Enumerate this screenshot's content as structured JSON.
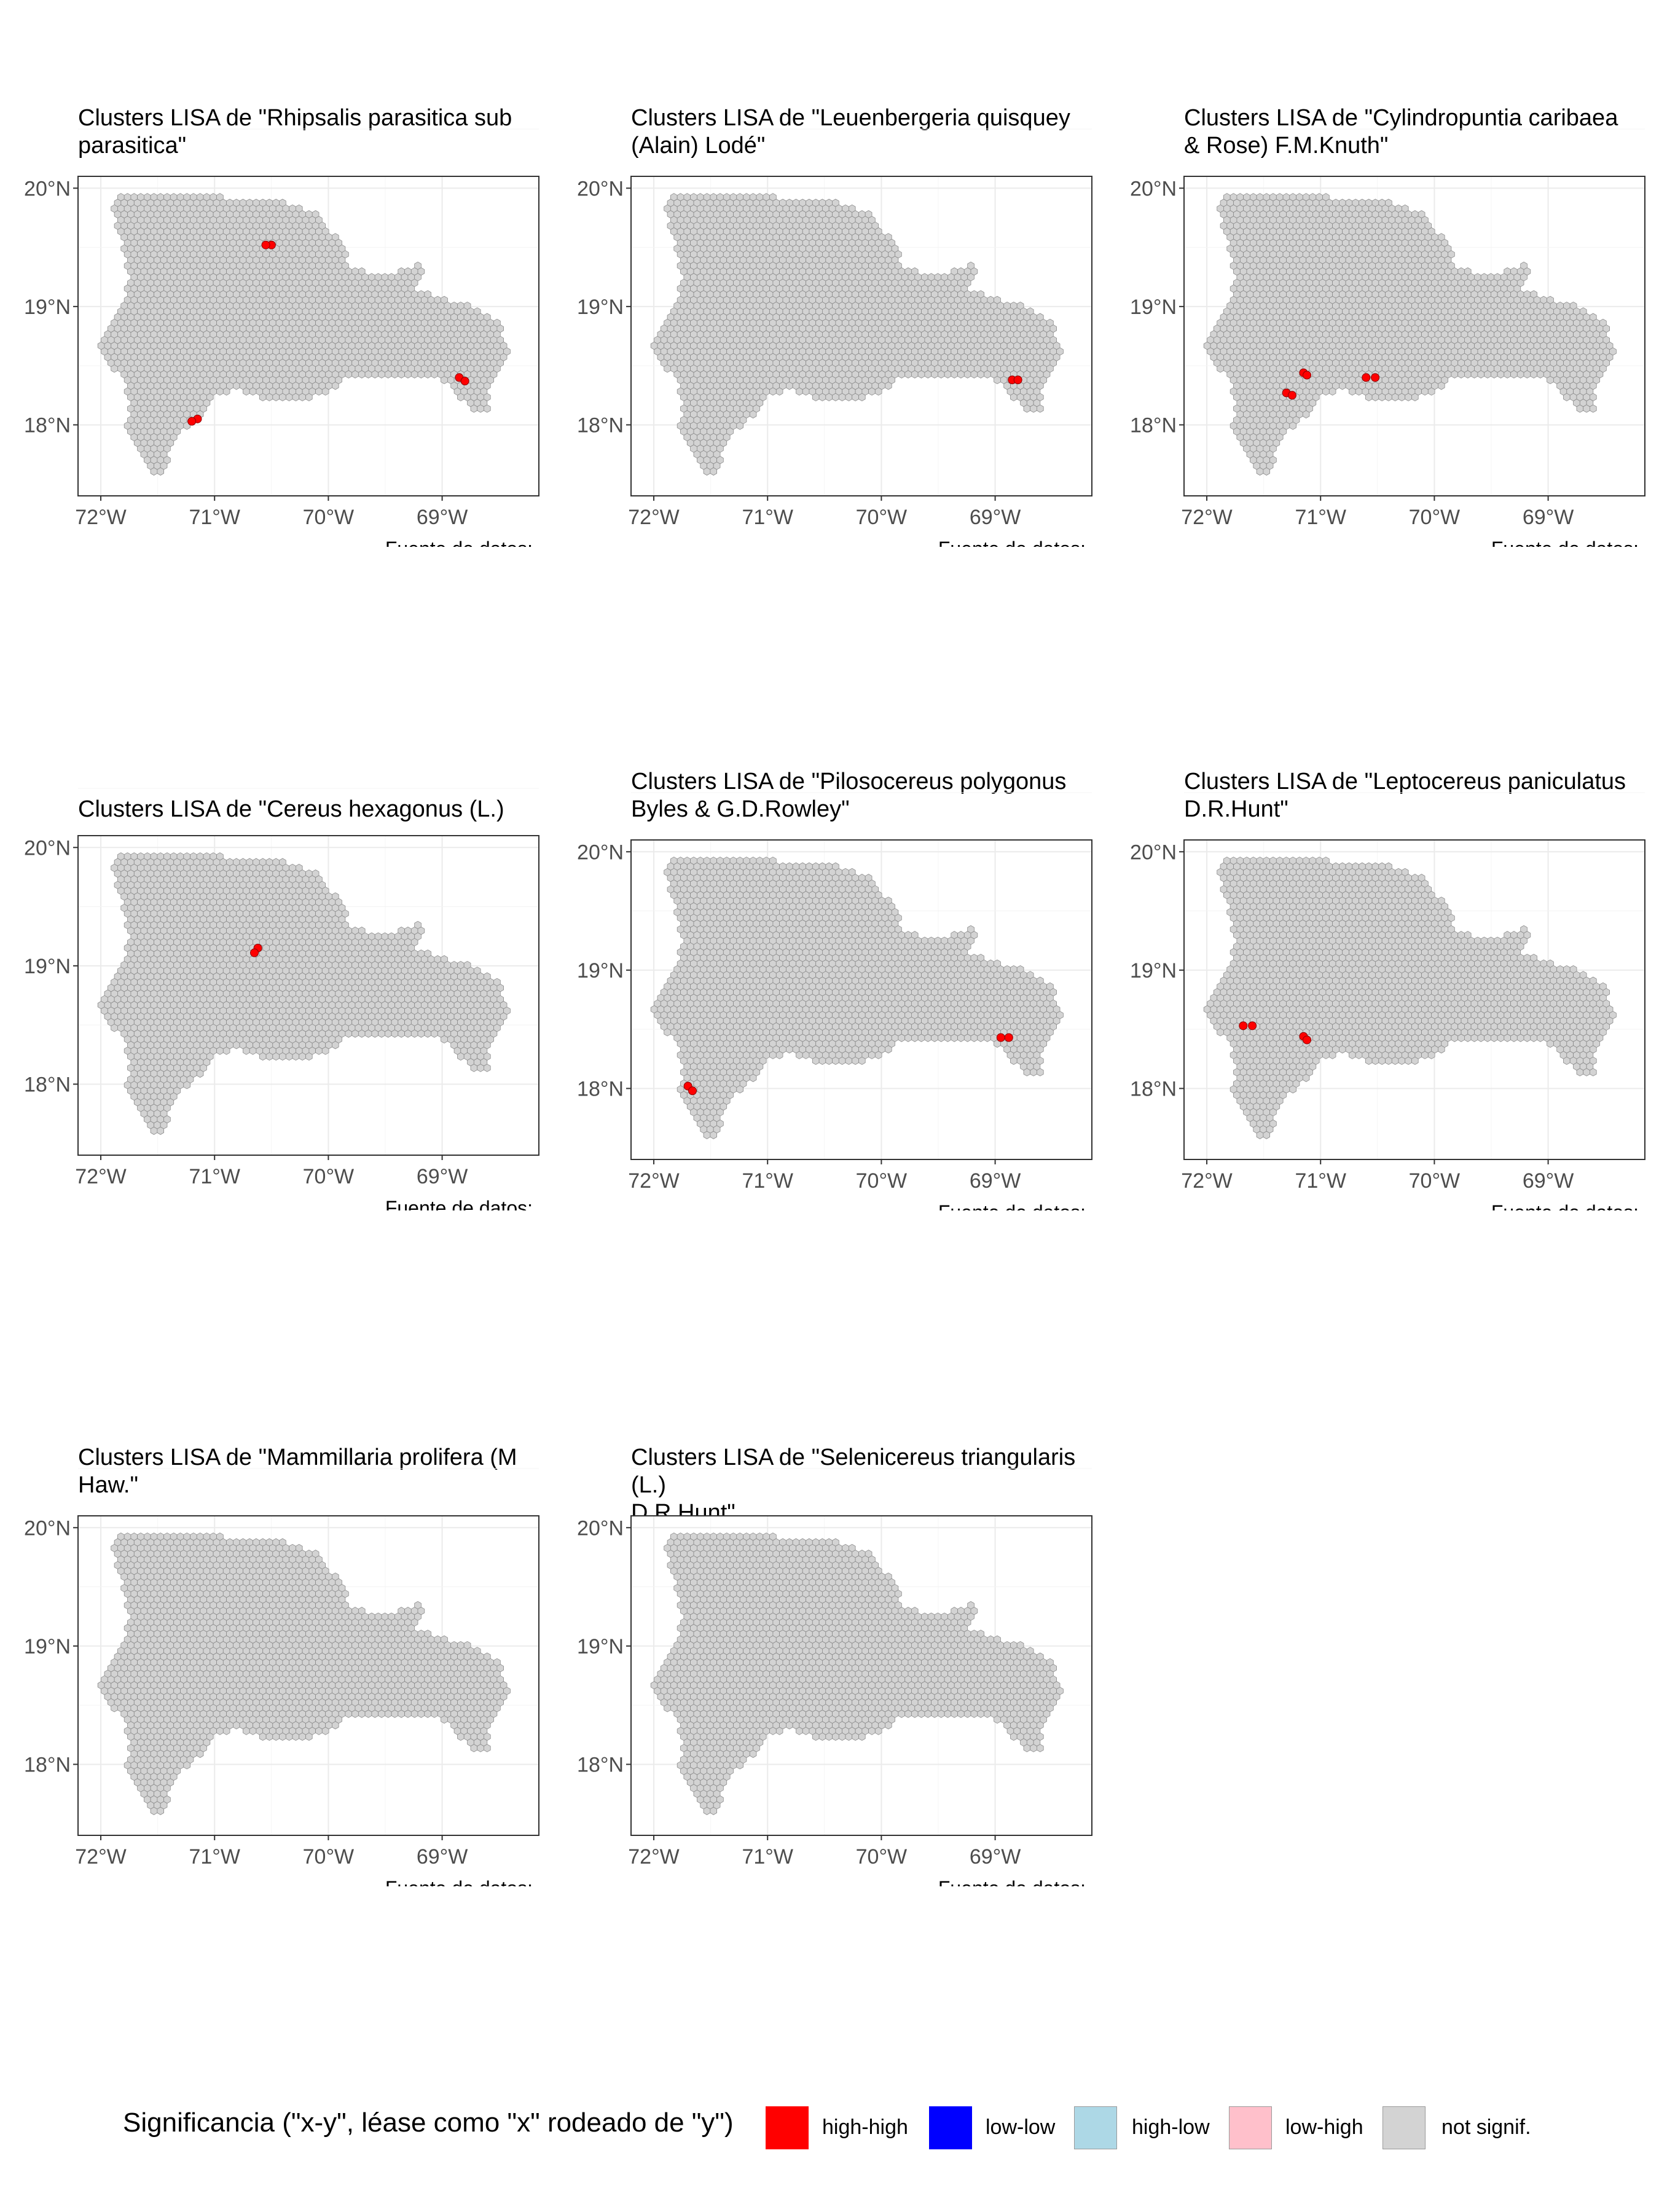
{
  "panels": [
    {
      "title": "Clusters LISA de \"Rhipsalis parasitica subsp. parasitica\"",
      "title_lines": [
        "Clusters LISA de \"Rhipsalis parasitica sub",
        "parasitica\""
      ],
      "caption": "Fuente de datos:",
      "clusters": [
        {
          "lon": -70.5,
          "lat": 19.52,
          "class": "high-high"
        },
        {
          "lon": -70.55,
          "lat": 19.52,
          "class": "high-high"
        },
        {
          "lon": -71.15,
          "lat": 18.05,
          "class": "high-high"
        },
        {
          "lon": -71.2,
          "lat": 18.03,
          "class": "high-high"
        },
        {
          "lon": -68.85,
          "lat": 18.4,
          "class": "high-high"
        },
        {
          "lon": -68.8,
          "lat": 18.37,
          "class": "high-high"
        }
      ]
    },
    {
      "title": "Clusters LISA de \"Leuenbergeria quisqueyana (Alain) Lodé\"",
      "title_lines": [
        "Clusters LISA de \"Leuenbergeria quisquey",
        "(Alain) Lodé\""
      ],
      "caption": "Fuente de datos:",
      "clusters": [
        {
          "lon": -68.85,
          "lat": 18.38,
          "class": "high-high"
        },
        {
          "lon": -68.8,
          "lat": 18.38,
          "class": "high-high"
        }
      ]
    },
    {
      "title": "Clusters LISA de \"Cylindropuntia caribaea (Britton & Rose) F.M.Knuth\"",
      "title_lines": [
        "Clusters LISA de \"Cylindropuntia caribaea",
        "& Rose) F.M.Knuth\""
      ],
      "caption": "Fuente de datos:",
      "clusters": [
        {
          "lon": -71.15,
          "lat": 18.44,
          "class": "high-high"
        },
        {
          "lon": -71.12,
          "lat": 18.42,
          "class": "high-high"
        },
        {
          "lon": -71.3,
          "lat": 18.27,
          "class": "high-high"
        },
        {
          "lon": -71.25,
          "lat": 18.25,
          "class": "high-high"
        },
        {
          "lon": -70.6,
          "lat": 18.4,
          "class": "high-high"
        },
        {
          "lon": -70.52,
          "lat": 18.4,
          "class": "high-high"
        }
      ]
    },
    {
      "title": "Clusters LISA de \"Cereus hexagonus (L.) Mill.\"",
      "title_lines": [
        "Clusters LISA de \"Cereus hexagonus (L.)"
      ],
      "caption": "Fuente de datos:",
      "clusters": [
        {
          "lon": -70.62,
          "lat": 19.15,
          "class": "high-high"
        },
        {
          "lon": -70.65,
          "lat": 19.11,
          "class": "high-high"
        }
      ]
    },
    {
      "title": "Clusters LISA de \"Pilosocereus polygonus (Lam.) Byles & G.D.Rowley\"",
      "title_lines": [
        "Clusters LISA de \"Pilosocereus polygonus",
        "Byles & G.D.Rowley\""
      ],
      "caption": "Fuente de datos:",
      "clusters": [
        {
          "lon": -71.7,
          "lat": 18.02,
          "class": "high-high"
        },
        {
          "lon": -71.66,
          "lat": 17.98,
          "class": "high-high"
        },
        {
          "lon": -68.95,
          "lat": 18.43,
          "class": "high-high"
        },
        {
          "lon": -68.88,
          "lat": 18.43,
          "class": "high-high"
        }
      ]
    },
    {
      "title": "Clusters LISA de \"Leptocereus paniculatus (Lam.) D.R.Hunt\"",
      "title_lines": [
        "Clusters LISA de \"Leptocereus paniculatus",
        "D.R.Hunt\""
      ],
      "caption": "Fuente de datos:",
      "clusters": [
        {
          "lon": -71.68,
          "lat": 18.53,
          "class": "high-high"
        },
        {
          "lon": -71.6,
          "lat": 18.53,
          "class": "high-high"
        },
        {
          "lon": -71.15,
          "lat": 18.44,
          "class": "high-high"
        },
        {
          "lon": -71.12,
          "lat": 18.41,
          "class": "high-high"
        }
      ]
    },
    {
      "title": "Clusters LISA de \"Mammillaria prolifera (Mill.) Haw.\"",
      "title_lines": [
        "Clusters LISA de \"Mammillaria prolifera (M",
        "Haw.\""
      ],
      "caption": "Fuente de datos:",
      "clusters": []
    },
    {
      "title": "Clusters LISA de \"Selenicereus triangularis (L.) D.R.Hunt\"",
      "title_lines": [
        "Clusters LISA de \"Selenicereus triangularis (L.)",
        "D.R.Hunt\""
      ],
      "caption": "Fuente de datos:",
      "clusters": []
    }
  ],
  "map_axes": {
    "x_ticks": [
      "72°W",
      "71°W",
      "70°W",
      "69°W"
    ],
    "x_tick_values": [
      -72,
      -71,
      -70,
      -69
    ],
    "y_ticks": [
      "20°N",
      "19°N",
      "18°N"
    ],
    "y_tick_values": [
      20,
      19,
      18
    ],
    "lon_range": [
      -72.2,
      -68.15
    ],
    "lat_range": [
      17.4,
      20.1
    ]
  },
  "region_outline": [
    [
      -71.9,
      19.92
    ],
    [
      -71.5,
      19.95
    ],
    [
      -71.05,
      19.95
    ],
    [
      -70.75,
      19.88
    ],
    [
      -70.45,
      19.9
    ],
    [
      -70.1,
      19.78
    ],
    [
      -70.0,
      19.62
    ],
    [
      -69.9,
      19.6
    ],
    [
      -69.8,
      19.33
    ],
    [
      -69.55,
      19.26
    ],
    [
      -69.35,
      19.3
    ],
    [
      -69.15,
      19.37
    ],
    [
      -69.25,
      19.15
    ],
    [
      -68.95,
      19.05
    ],
    [
      -68.7,
      19.0
    ],
    [
      -68.5,
      18.85
    ],
    [
      -68.4,
      18.6
    ],
    [
      -68.5,
      18.42
    ],
    [
      -68.6,
      18.3
    ],
    [
      -68.6,
      18.12
    ],
    [
      -68.75,
      18.12
    ],
    [
      -68.9,
      18.3
    ],
    [
      -69.1,
      18.42
    ],
    [
      -69.5,
      18.42
    ],
    [
      -69.8,
      18.42
    ],
    [
      -70.0,
      18.28
    ],
    [
      -70.2,
      18.2
    ],
    [
      -70.5,
      18.2
    ],
    [
      -70.8,
      18.3
    ],
    [
      -70.95,
      18.25
    ],
    [
      -71.05,
      18.2
    ],
    [
      -71.15,
      18.05
    ],
    [
      -71.3,
      17.95
    ],
    [
      -71.45,
      17.62
    ],
    [
      -71.55,
      17.55
    ],
    [
      -71.65,
      17.72
    ],
    [
      -71.78,
      17.97
    ],
    [
      -71.75,
      18.2
    ],
    [
      -71.8,
      18.38
    ],
    [
      -71.95,
      18.55
    ],
    [
      -72.05,
      18.65
    ],
    [
      -71.93,
      18.82
    ],
    [
      -71.82,
      18.98
    ],
    [
      -71.75,
      19.2
    ],
    [
      -71.78,
      19.45
    ],
    [
      -71.85,
      19.6
    ],
    [
      -71.88,
      19.82
    ]
  ],
  "legend": {
    "title": "Significancia (\"x-y\", léase como \"x\" rodeado de \"y\")",
    "items": [
      {
        "label": "high-high",
        "color": "#ff0000"
      },
      {
        "label": "low-low",
        "color": "#0000ff"
      },
      {
        "label": "high-low",
        "color": "#add8e6"
      },
      {
        "label": "low-high",
        "color": "#ffc0cb"
      },
      {
        "label": "not signif.",
        "color": "#d3d3d3"
      }
    ]
  }
}
